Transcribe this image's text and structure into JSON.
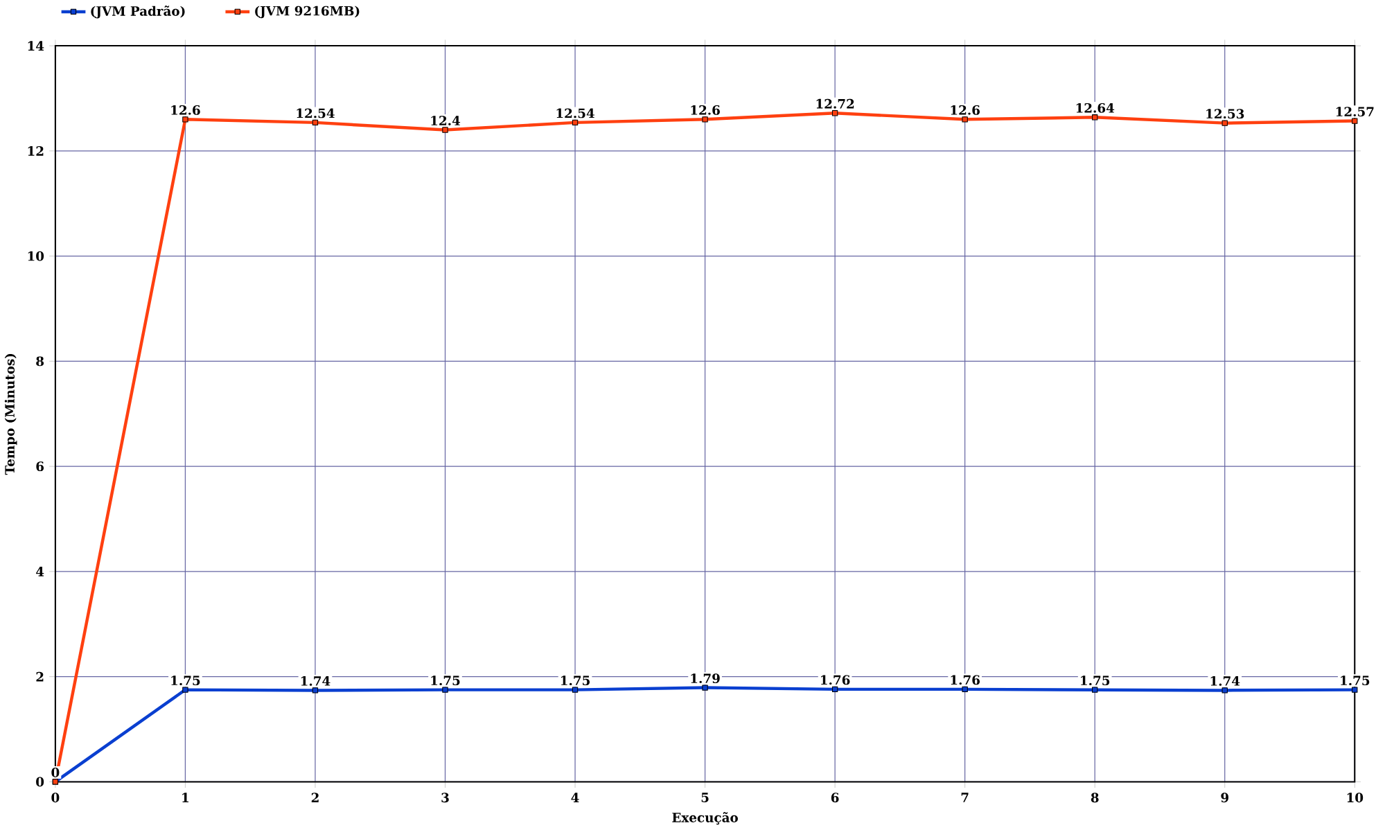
{
  "chart_data": {
    "type": "line",
    "xlabel": "Execução",
    "ylabel": "Tempo (Minutos)",
    "x": [
      0,
      1,
      2,
      3,
      4,
      5,
      6,
      7,
      8,
      9,
      10
    ],
    "series": [
      {
        "name": "(JVM Padrão)",
        "color": "#0a3fd0",
        "values": [
          0,
          1.75,
          1.74,
          1.75,
          1.75,
          1.79,
          1.76,
          1.76,
          1.75,
          1.74,
          1.75
        ],
        "value_labels": [
          "0",
          "1.75",
          "1.74",
          "1.75",
          "1.75",
          "1.79",
          "1.76",
          "1.76",
          "1.75",
          "1.74",
          "1.75"
        ]
      },
      {
        "name": "(JVM 9216MB)",
        "color": "#ff4010",
        "values": [
          0,
          12.6,
          12.54,
          12.4,
          12.54,
          12.6,
          12.72,
          12.6,
          12.64,
          12.53,
          12.57
        ],
        "value_labels": [
          null,
          "12.6",
          "12.54",
          "12.4",
          "12.54",
          "12.6",
          "12.72",
          "12.6",
          "12.64",
          "12.53",
          "12.57"
        ]
      }
    ],
    "xlim": [
      0,
      10
    ],
    "xticks": [
      0,
      1,
      2,
      3,
      4,
      5,
      6,
      7,
      8,
      9,
      10
    ],
    "ylim": [
      0,
      14
    ],
    "yticks": [
      0,
      2,
      4,
      6,
      8,
      10,
      12,
      14
    ],
    "grid": true,
    "legend": "top left",
    "marker": "square",
    "line_style": "solid"
  }
}
